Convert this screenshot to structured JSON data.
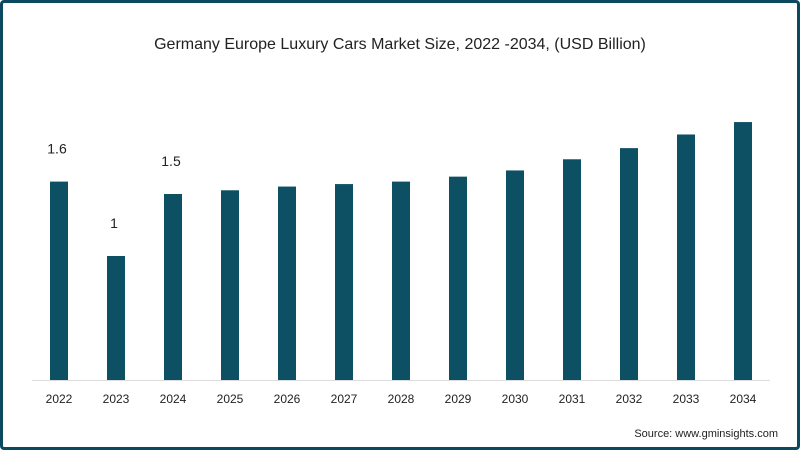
{
  "chart_data": {
    "type": "bar",
    "title": "Germany Europe Luxury Cars Market Size, 2022 -2034, (USD Billion)",
    "xlabel": "",
    "ylabel": "",
    "categories": [
      "2022",
      "2023",
      "2024",
      "2025",
      "2026",
      "2027",
      "2028",
      "2029",
      "2030",
      "2031",
      "2032",
      "2033",
      "2034"
    ],
    "values": [
      1.6,
      1.0,
      1.5,
      1.53,
      1.56,
      1.58,
      1.6,
      1.64,
      1.69,
      1.78,
      1.87,
      1.98,
      2.08
    ],
    "data_labels": [
      "1.6",
      "1",
      "1.5",
      "",
      "",
      "",
      "",
      "",
      "",
      "",
      "",
      "",
      ""
    ],
    "ylim": [
      0,
      2.2
    ],
    "grid": false,
    "bar_color": "#0d4f63"
  },
  "source": "Source: www.gminsights.com"
}
